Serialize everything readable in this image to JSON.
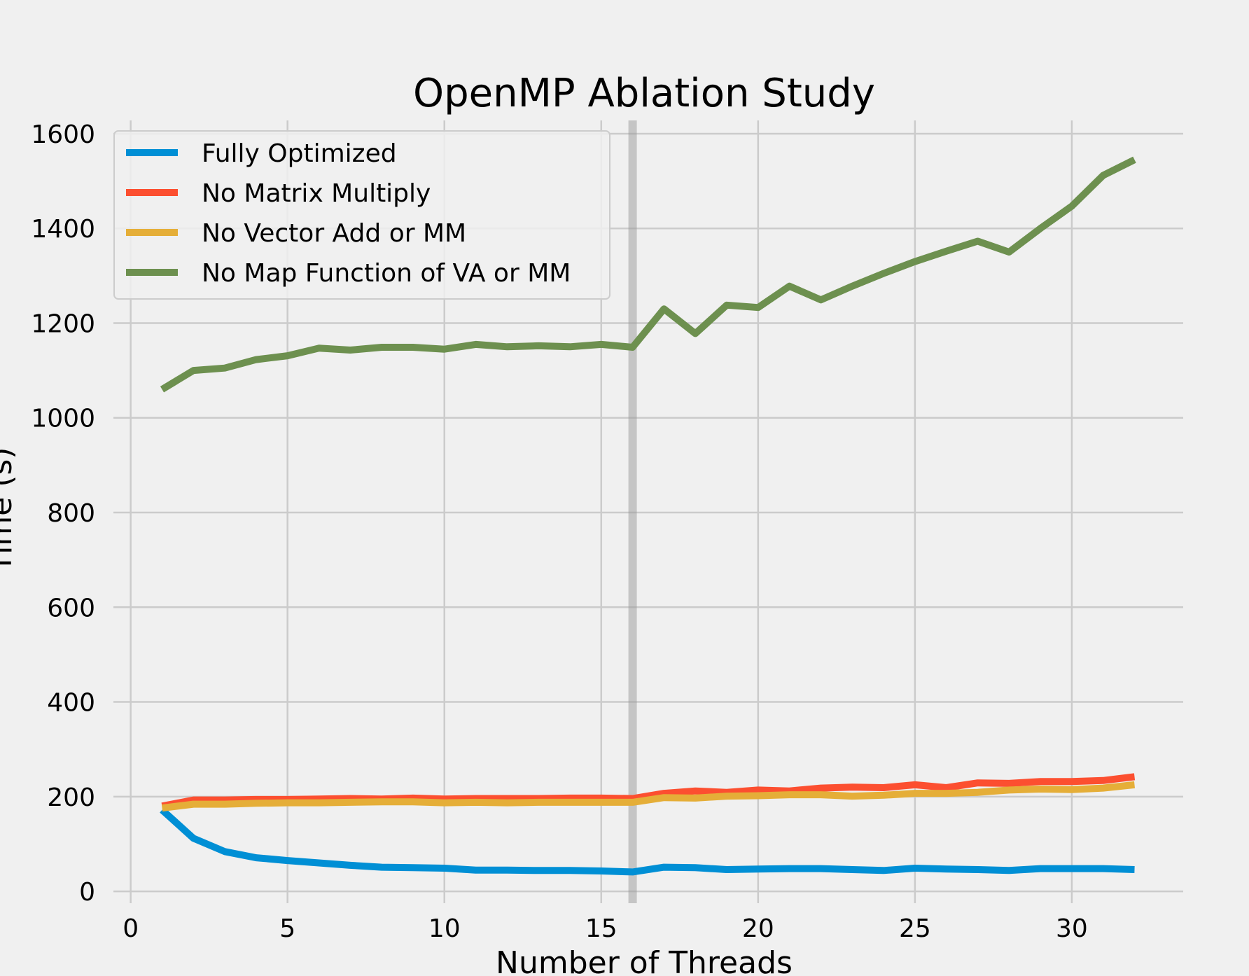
{
  "chart_data": {
    "type": "line",
    "title": "OpenMP Ablation Study",
    "xlabel": "Number of Threads",
    "ylabel": "Time (s)",
    "xlim": [
      -0.55,
      33.55
    ],
    "ylim": [
      -25,
      1628
    ],
    "xticks": [
      0,
      5,
      10,
      15,
      20,
      25,
      30
    ],
    "yticks": [
      0,
      200,
      400,
      600,
      800,
      1000,
      1200,
      1400,
      1600
    ],
    "grid": true,
    "legend_position": "upper-left",
    "x": [
      1,
      2,
      3,
      4,
      5,
      6,
      7,
      8,
      9,
      10,
      11,
      12,
      13,
      14,
      15,
      16,
      17,
      18,
      19,
      20,
      21,
      22,
      23,
      24,
      25,
      26,
      27,
      28,
      29,
      30,
      31,
      32
    ],
    "series": [
      {
        "name": "Fully Optimized",
        "color": "#008fd5",
        "values": [
          172,
          112,
          84,
          71,
          65,
          60,
          55,
          51,
          50,
          49,
          45,
          45,
          44,
          44,
          43,
          41,
          51,
          50,
          46,
          47,
          48,
          48,
          46,
          44,
          49,
          47,
          46,
          44,
          48,
          48,
          48,
          46
        ]
      },
      {
        "name": "No Matrix Multiply",
        "color": "#fc4f30",
        "values": [
          180,
          193,
          193,
          194,
          194,
          195,
          196,
          195,
          197,
          195,
          196,
          196,
          196,
          197,
          197,
          196,
          207,
          212,
          209,
          214,
          212,
          218,
          220,
          219,
          225,
          219,
          229,
          228,
          232,
          232,
          234,
          242
        ]
      },
      {
        "name": "No Vector Add or MM",
        "color": "#e5ae38",
        "values": [
          176,
          184,
          184,
          186,
          187,
          187,
          188,
          189,
          189,
          187,
          188,
          187,
          188,
          188,
          188,
          188,
          198,
          197,
          201,
          202,
          204,
          204,
          201,
          203,
          207,
          207,
          209,
          214,
          216,
          215,
          218,
          225
        ]
      },
      {
        "name": "No Map Function of VA or MM",
        "color": "#6d904f",
        "values": [
          1060,
          1100,
          1105,
          1123,
          1131,
          1147,
          1143,
          1149,
          1149,
          1145,
          1155,
          1150,
          1152,
          1150,
          1155,
          1149,
          1230,
          1178,
          1238,
          1233,
          1278,
          1249,
          1278,
          1305,
          1330,
          1352,
          1373,
          1350,
          1400,
          1447,
          1512,
          1545
        ]
      }
    ],
    "vertical_marker": {
      "x": 16,
      "color": "#999999"
    }
  }
}
